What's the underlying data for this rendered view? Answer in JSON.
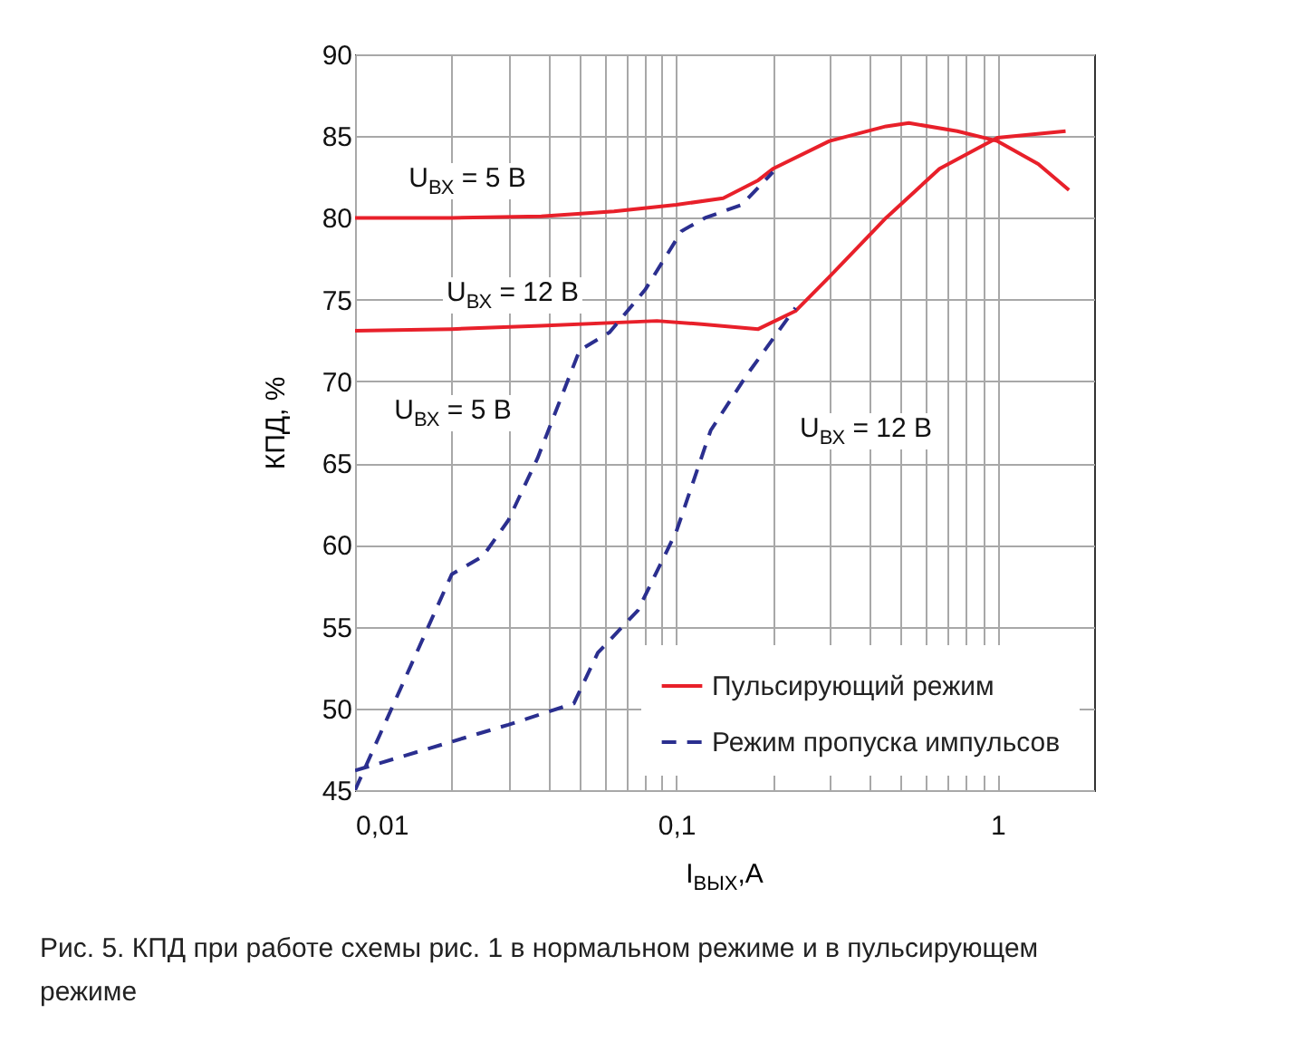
{
  "chart_data": {
    "type": "line",
    "xlabel": "I$_{ВЫХ}$,А",
    "ylabel": "КПД, %",
    "log": "x",
    "grid": true,
    "legend": "bottom right",
    "xlim": [
      0.01,
      2
    ],
    "ylim": [
      45,
      90
    ],
    "xticks": [
      {
        "value": 0.01,
        "label": "0,01"
      },
      {
        "value": 0.02,
        "label": null
      },
      {
        "value": 0.03,
        "label": null
      },
      {
        "value": 0.04,
        "label": null
      },
      {
        "value": 0.05,
        "label": null
      },
      {
        "value": 0.06,
        "label": null
      },
      {
        "value": 0.07,
        "label": null
      },
      {
        "value": 0.08,
        "label": null
      },
      {
        "value": 0.09,
        "label": null
      },
      {
        "value": 0.1,
        "label": "0,1"
      },
      {
        "value": 0.2,
        "label": null
      },
      {
        "value": 0.3,
        "label": null
      },
      {
        "value": 0.4,
        "label": null
      },
      {
        "value": 0.5,
        "label": null
      },
      {
        "value": 0.6,
        "label": null
      },
      {
        "value": 0.7,
        "label": null
      },
      {
        "value": 0.8,
        "label": null
      },
      {
        "value": 0.9,
        "label": null
      },
      {
        "value": 1,
        "label": "1"
      }
    ],
    "yticks": [
      45,
      50,
      55,
      60,
      65,
      70,
      75,
      80,
      85,
      90
    ],
    "series": [
      {
        "name": "Пульсирующий режим",
        "color": "#e8202a",
        "line_style": "solid",
        "x": [
          0.01,
          0.02,
          0.038,
          0.064,
          0.1,
          0.14,
          0.18,
          0.2,
          0.3,
          0.45,
          0.53,
          0.75,
          1,
          1.34,
          1.67
        ],
        "values": [
          80,
          80,
          80.1,
          80.4,
          80.8,
          81.2,
          82.3,
          83,
          84.7,
          85.6,
          85.8,
          85.3,
          84.7,
          83.3,
          81.7
        ]
      },
      {
        "color": "#e8202a",
        "line_style": "solid",
        "x": [
          0.01,
          0.02,
          0.038,
          0.087,
          0.12,
          0.18,
          0.235,
          0.3,
          0.45,
          0.66,
          1,
          1.63
        ],
        "values": [
          73.1,
          73.2,
          73.4,
          73.7,
          73.5,
          73.2,
          74.3,
          76.4,
          80,
          83,
          84.9,
          85.3
        ]
      },
      {
        "name": "Режим пропуска импульсов",
        "color": "#2b2f8f",
        "line_style": "dashed",
        "x": [
          0.01,
          0.02,
          0.025,
          0.03,
          0.037,
          0.05,
          0.062,
          0.08,
          0.104,
          0.123,
          0.16,
          0.2
        ],
        "values": [
          45,
          58.2,
          59.3,
          61.5,
          65.3,
          71.9,
          73,
          75.6,
          79.2,
          80,
          80.8,
          82.8
        ]
      },
      {
        "color": "#2b2f8f",
        "line_style": "dashed",
        "x": [
          0.01,
          0.03,
          0.048,
          0.057,
          0.076,
          0.1,
          0.128,
          0.166,
          0.235
        ],
        "values": [
          46.2,
          49,
          50.3,
          53.4,
          56,
          60.8,
          67,
          70.4,
          74.5
        ]
      }
    ],
    "annotations": [
      "U$_{ВХ}$ = 5 В",
      "U$_{ВХ}$ = 12 В",
      "U$_{ВХ}$ = 5 В",
      "U$_{ВХ}$ = 12 В",
      "Рис. 5. КПД при работе схемы рис. 1 в нормальном режиме и в пульсирующем режиме"
    ]
  }
}
